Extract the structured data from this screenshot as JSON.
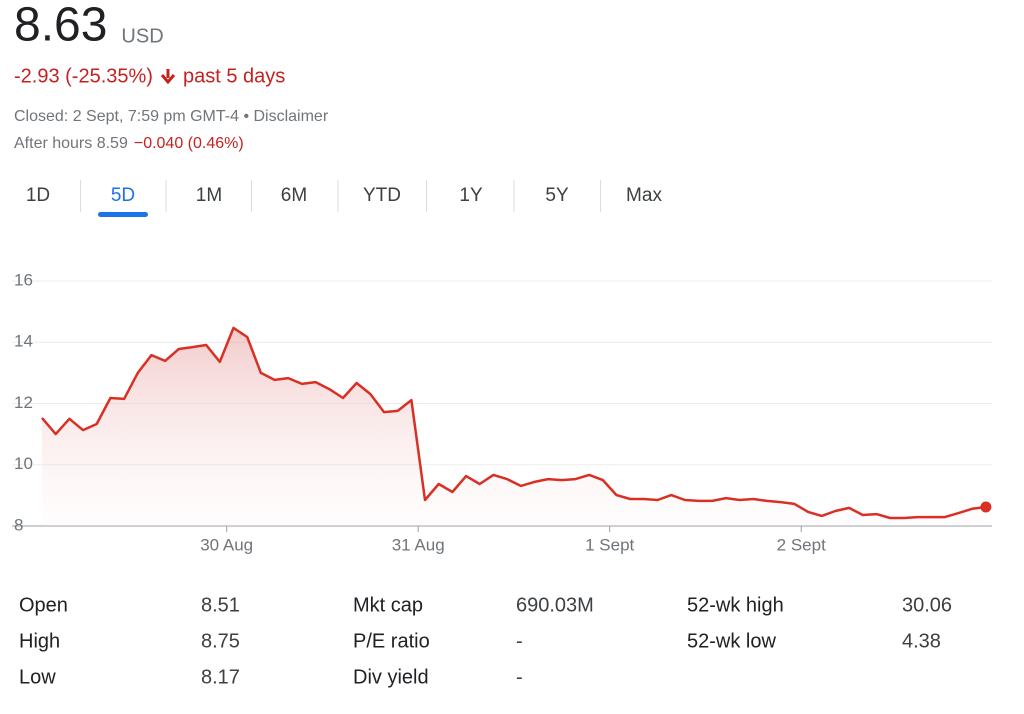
{
  "header": {
    "price": "8.63",
    "currency": "USD",
    "change": "-2.93 (-25.35%)",
    "period": "past 5 days",
    "closed": "Closed: 2 Sept, 7:59 pm GMT-4 • Disclaimer",
    "after_hours": "After hours 8.59",
    "after_hours_change": "−0.040 (0.46%)"
  },
  "tabs": {
    "items": [
      "1D",
      "5D",
      "1M",
      "6M",
      "YTD",
      "1Y",
      "5Y",
      "Max"
    ],
    "selected": 1
  },
  "chart_data": {
    "type": "line",
    "color": "#d93025",
    "area": true,
    "grid": true,
    "x": [
      0,
      1,
      2,
      3,
      4,
      5,
      6,
      7,
      8,
      9,
      10,
      11,
      12,
      13,
      14,
      15,
      16,
      17,
      18,
      19,
      20,
      21,
      22,
      23,
      24,
      25,
      26,
      27,
      28,
      29,
      30,
      31,
      32,
      33,
      34,
      35,
      36,
      37,
      38,
      39,
      40,
      41,
      42,
      43,
      44,
      45,
      46,
      47,
      48,
      49,
      50,
      51,
      52,
      53,
      54,
      55,
      56,
      57,
      58,
      59,
      60,
      61,
      62,
      63,
      64,
      65,
      66,
      67,
      68,
      69
    ],
    "values": [
      11.53,
      11.0,
      11.5,
      11.13,
      11.33,
      12.18,
      12.15,
      13.0,
      13.58,
      13.39,
      13.78,
      13.84,
      13.91,
      13.36,
      14.47,
      14.17,
      13.0,
      12.77,
      12.83,
      12.64,
      12.7,
      12.47,
      12.18,
      12.67,
      12.31,
      11.72,
      11.76,
      12.11,
      8.85,
      9.37,
      9.11,
      9.63,
      9.37,
      9.67,
      9.53,
      9.31,
      9.44,
      9.53,
      9.5,
      9.53,
      9.67,
      9.5,
      9.01,
      8.88,
      8.88,
      8.85,
      9.01,
      8.85,
      8.82,
      8.82,
      8.91,
      8.85,
      8.88,
      8.82,
      8.78,
      8.72,
      8.46,
      8.33,
      8.49,
      8.59,
      8.36,
      8.39,
      8.26,
      8.26,
      8.29,
      8.29,
      8.29,
      8.42,
      8.56,
      8.62
    ],
    "xlim": [
      0,
      69.3
    ],
    "xticks": [
      {
        "value": 13.5,
        "label": "30 Aug"
      },
      {
        "value": 27.5,
        "label": "31 Aug"
      },
      {
        "value": 41.5,
        "label": "1 Sept"
      },
      {
        "value": 55.5,
        "label": "2 Sept"
      }
    ],
    "ylim": [
      8,
      16
    ],
    "yticks": [
      8,
      10,
      12,
      14,
      16
    ]
  },
  "stats": [
    [
      "Open",
      "8.51"
    ],
    [
      "High",
      "8.75"
    ],
    [
      "Low",
      "8.17"
    ],
    [
      "Mkt cap",
      "690.03M"
    ],
    [
      "P/E ratio",
      "-"
    ],
    [
      "Div yield",
      "-"
    ],
    [
      "52-wk high",
      "30.06"
    ],
    [
      "52-wk low",
      "4.38"
    ]
  ]
}
